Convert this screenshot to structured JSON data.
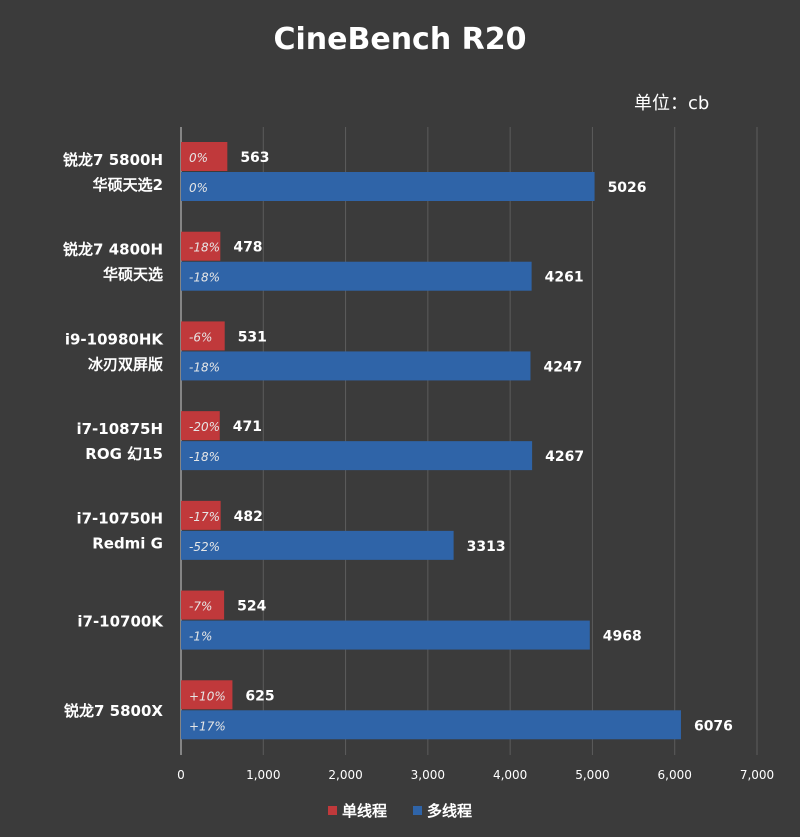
{
  "chart_data": {
    "type": "bar",
    "orientation": "horizontal",
    "title": "CineBench R20",
    "unit_label": "单位：cb",
    "xlim": [
      0,
      7000
    ],
    "x_ticks": [
      "0",
      "1,000",
      "2,000",
      "3,000",
      "4,000",
      "5,000",
      "6,000",
      "7,000"
    ],
    "x_tick_values": [
      0,
      1000,
      2000,
      3000,
      4000,
      5000,
      6000,
      7000
    ],
    "grid": "vertical",
    "legend_position": "bottom",
    "categories": [
      {
        "line1": "锐龙7 5800H",
        "line2": "华硕天选2"
      },
      {
        "line1": "锐龙7 4800H",
        "line2": "华硕天选"
      },
      {
        "line1": "i9-10980HK",
        "line2": "冰刃双屏版"
      },
      {
        "line1": "i7-10875H",
        "line2": "ROG 幻15"
      },
      {
        "line1": "i7-10750H",
        "line2": "Redmi G"
      },
      {
        "line1": "i7-10700K",
        "line2": ""
      },
      {
        "line1": "锐龙7 5800X",
        "line2": ""
      }
    ],
    "series": [
      {
        "name": "单线程",
        "color": "#c0393b",
        "values": [
          563,
          478,
          531,
          471,
          482,
          524,
          625
        ],
        "labels": [
          "563",
          "478",
          "531",
          "471",
          "482",
          "524",
          "625"
        ],
        "pct": [
          "0%",
          "-18%",
          "-6%",
          "-20%",
          "-17%",
          "-7%",
          "+10%"
        ]
      },
      {
        "name": "多线程",
        "color": "#2f64a8",
        "values": [
          5026,
          4261,
          4247,
          4267,
          3313,
          4968,
          6076
        ],
        "labels": [
          "5026",
          "4261",
          "4247",
          "4267",
          "3313",
          "4968",
          "6076"
        ],
        "pct": [
          "0%",
          "-18%",
          "-18%",
          "-18%",
          "-52%",
          "-1%",
          "+17%"
        ]
      }
    ]
  }
}
